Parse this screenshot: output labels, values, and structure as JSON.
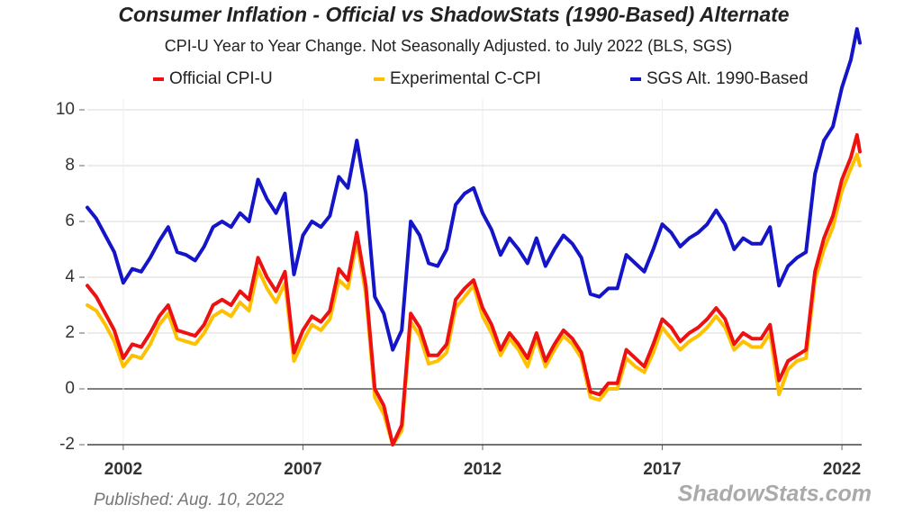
{
  "chart_data": {
    "type": "line",
    "title": "Consumer Inflation - Official vs ShadowStats (1990-Based) Alternate",
    "subtitle": "CPI-U Year to Year Change. Not Seasonally Adjusted. to July 2022  (BLS, SGS)",
    "source": "Published: Aug. 10, 2022",
    "watermark": "ShadowStats.com",
    "x": [
      2001,
      2001.25,
      2001.5,
      2001.75,
      2002,
      2002.25,
      2002.5,
      2002.75,
      2003,
      2003.25,
      2003.5,
      2003.75,
      2004,
      2004.25,
      2004.5,
      2004.75,
      2005,
      2005.25,
      2005.5,
      2005.75,
      2006,
      2006.25,
      2006.5,
      2006.75,
      2007,
      2007.25,
      2007.5,
      2007.75,
      2008,
      2008.25,
      2008.5,
      2008.75,
      2009,
      2009.25,
      2009.5,
      2009.75,
      2010,
      2010.25,
      2010.5,
      2010.75,
      2011,
      2011.25,
      2011.5,
      2011.75,
      2012,
      2012.25,
      2012.5,
      2012.75,
      2013,
      2013.25,
      2013.5,
      2013.75,
      2014,
      2014.25,
      2014.5,
      2014.75,
      2015,
      2015.25,
      2015.5,
      2015.75,
      2016,
      2016.25,
      2016.5,
      2016.75,
      2017,
      2017.25,
      2017.5,
      2017.75,
      2018,
      2018.25,
      2018.5,
      2018.75,
      2019,
      2019.25,
      2019.5,
      2019.75,
      2020,
      2020.25,
      2020.5,
      2020.75,
      2021,
      2021.25,
      2021.5,
      2021.75,
      2022,
      2022.25,
      2022.42,
      2022.5
    ],
    "series": [
      {
        "name": "Official CPI-U",
        "color": "#ee1111",
        "values": [
          3.7,
          3.3,
          2.7,
          2.1,
          1.1,
          1.6,
          1.5,
          2.0,
          2.6,
          3.0,
          2.1,
          2.0,
          1.9,
          2.3,
          3.0,
          3.2,
          3.0,
          3.5,
          3.2,
          4.7,
          4.0,
          3.5,
          4.2,
          1.3,
          2.1,
          2.6,
          2.4,
          2.8,
          4.3,
          3.9,
          5.6,
          3.7,
          0.0,
          -0.6,
          -2.0,
          -1.3,
          2.7,
          2.2,
          1.2,
          1.2,
          1.6,
          3.2,
          3.6,
          3.9,
          2.9,
          2.3,
          1.4,
          2.0,
          1.6,
          1.1,
          2.0,
          1.0,
          1.6,
          2.1,
          1.8,
          1.3,
          -0.1,
          -0.2,
          0.2,
          0.2,
          1.4,
          1.1,
          0.8,
          1.6,
          2.5,
          2.2,
          1.7,
          2.0,
          2.2,
          2.5,
          2.9,
          2.5,
          1.6,
          2.0,
          1.8,
          1.8,
          2.3,
          0.3,
          1.0,
          1.2,
          1.4,
          4.2,
          5.4,
          6.2,
          7.5,
          8.3,
          9.1,
          8.5
        ]
      },
      {
        "name": "Experimental C-CPI",
        "color": "#ffc000",
        "values": [
          3.0,
          2.8,
          2.3,
          1.7,
          0.8,
          1.2,
          1.1,
          1.6,
          2.3,
          2.7,
          1.8,
          1.7,
          1.6,
          2.0,
          2.6,
          2.8,
          2.6,
          3.1,
          2.8,
          4.3,
          3.6,
          3.1,
          3.8,
          1.0,
          1.7,
          2.3,
          2.1,
          2.5,
          3.9,
          3.6,
          5.3,
          3.4,
          -0.3,
          -0.9,
          -2.0,
          -1.5,
          2.4,
          1.9,
          0.9,
          1.0,
          1.3,
          2.9,
          3.3,
          3.7,
          2.6,
          2.0,
          1.2,
          1.8,
          1.4,
          0.8,
          1.8,
          0.8,
          1.4,
          1.9,
          1.6,
          1.1,
          -0.3,
          -0.4,
          0.0,
          0.0,
          1.1,
          0.8,
          0.6,
          1.3,
          2.2,
          1.8,
          1.4,
          1.7,
          1.9,
          2.2,
          2.6,
          2.2,
          1.4,
          1.7,
          1.5,
          1.5,
          2.0,
          -0.2,
          0.7,
          1.0,
          1.1,
          3.9,
          5.0,
          5.8,
          7.1,
          7.9,
          8.4,
          8.0
        ]
      },
      {
        "name": "SGS  Alt. 1990-Based",
        "color": "#1414c8",
        "values": [
          6.5,
          6.1,
          5.5,
          4.9,
          3.8,
          4.3,
          4.2,
          4.7,
          5.3,
          5.8,
          4.9,
          4.8,
          4.6,
          5.1,
          5.8,
          6.0,
          5.8,
          6.3,
          6.0,
          7.5,
          6.8,
          6.3,
          7.0,
          4.1,
          5.5,
          6.0,
          5.8,
          6.2,
          7.6,
          7.2,
          8.9,
          7.0,
          3.3,
          2.7,
          1.4,
          2.1,
          6.0,
          5.5,
          4.5,
          4.4,
          5.0,
          6.6,
          7.0,
          7.2,
          6.3,
          5.7,
          4.8,
          5.4,
          5.0,
          4.5,
          5.4,
          4.4,
          5.0,
          5.5,
          5.2,
          4.7,
          3.4,
          3.3,
          3.6,
          3.6,
          4.8,
          4.5,
          4.2,
          5.0,
          5.9,
          5.6,
          5.1,
          5.4,
          5.6,
          5.9,
          6.4,
          5.9,
          5.0,
          5.4,
          5.2,
          5.2,
          5.8,
          3.7,
          4.4,
          4.7,
          4.9,
          7.7,
          8.9,
          9.4,
          10.8,
          11.8,
          12.9,
          12.4
        ]
      }
    ],
    "xlim": [
      2001,
      2022.55
    ],
    "xticks": [
      2002,
      2007,
      2012,
      2017,
      2022
    ],
    "ylim": [
      -2,
      13
    ],
    "yticks": [
      -2,
      0,
      2,
      4,
      6,
      8,
      10
    ],
    "grid": true
  }
}
